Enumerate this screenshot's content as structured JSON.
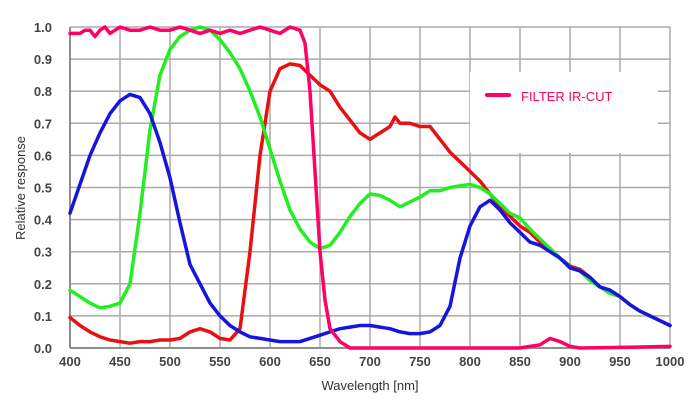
{
  "chart_data": {
    "type": "line",
    "title": "",
    "xlabel": "Wavelength [nm]",
    "ylabel": "Relative response",
    "xlim": [
      400,
      1000
    ],
    "ylim": [
      0,
      1.0
    ],
    "grid": true,
    "x_ticks": [
      "400",
      "450",
      "500",
      "550",
      "600",
      "650",
      "700",
      "750",
      "800",
      "850",
      "900",
      "950",
      "1000"
    ],
    "y_ticks": [
      "0.0",
      "0.1",
      "0.2",
      "0.3",
      "0.4",
      "0.5",
      "0.6",
      "0.7",
      "0.8",
      "0.9",
      "1.0"
    ],
    "legend": {
      "placement": "top-right",
      "entries": [
        {
          "label": "FILTER IR-CUT",
          "color": "#ff0066"
        }
      ]
    },
    "series": [
      {
        "name": "red",
        "color": "#e81010",
        "x": [
          400,
          410,
          420,
          430,
          440,
          450,
          460,
          470,
          480,
          490,
          500,
          510,
          520,
          530,
          540,
          550,
          560,
          570,
          580,
          590,
          600,
          610,
          620,
          630,
          640,
          650,
          660,
          670,
          680,
          690,
          700,
          710,
          720,
          725,
          730,
          740,
          750,
          760,
          770,
          780,
          790,
          800,
          810,
          820,
          830,
          840,
          850,
          860,
          870,
          880,
          890,
          900,
          910,
          920,
          930,
          940,
          950,
          960,
          970,
          980,
          990,
          1000
        ],
        "y": [
          0.095,
          0.07,
          0.05,
          0.035,
          0.025,
          0.02,
          0.015,
          0.02,
          0.02,
          0.025,
          0.025,
          0.03,
          0.05,
          0.06,
          0.05,
          0.03,
          0.025,
          0.06,
          0.3,
          0.6,
          0.8,
          0.87,
          0.885,
          0.88,
          0.85,
          0.82,
          0.8,
          0.75,
          0.71,
          0.67,
          0.65,
          0.67,
          0.69,
          0.72,
          0.7,
          0.7,
          0.69,
          0.69,
          0.65,
          0.61,
          0.58,
          0.55,
          0.52,
          0.48,
          0.44,
          0.41,
          0.38,
          0.36,
          0.33,
          0.31,
          0.28,
          0.255,
          0.245,
          0.22,
          0.19,
          0.18,
          0.16,
          0.135,
          0.115,
          0.1,
          0.085,
          0.07
        ]
      },
      {
        "name": "green",
        "color": "#22ee22",
        "x": [
          400,
          410,
          420,
          430,
          440,
          450,
          460,
          470,
          480,
          490,
          500,
          510,
          520,
          530,
          540,
          550,
          560,
          570,
          580,
          590,
          600,
          610,
          620,
          630,
          640,
          650,
          660,
          670,
          680,
          690,
          700,
          710,
          720,
          730,
          740,
          750,
          760,
          770,
          780,
          790,
          800,
          810,
          820,
          830,
          840,
          850,
          860,
          870,
          880,
          890,
          900,
          910,
          920,
          930,
          940,
          950,
          960,
          970,
          980,
          990,
          1000
        ],
        "y": [
          0.18,
          0.16,
          0.14,
          0.125,
          0.13,
          0.14,
          0.2,
          0.42,
          0.68,
          0.85,
          0.93,
          0.97,
          0.99,
          1.0,
          0.99,
          0.96,
          0.92,
          0.87,
          0.8,
          0.72,
          0.62,
          0.52,
          0.43,
          0.37,
          0.33,
          0.31,
          0.32,
          0.36,
          0.41,
          0.45,
          0.48,
          0.475,
          0.46,
          0.44,
          0.455,
          0.47,
          0.49,
          0.49,
          0.5,
          0.505,
          0.51,
          0.5,
          0.48,
          0.45,
          0.42,
          0.405,
          0.37,
          0.34,
          0.31,
          0.28,
          0.25,
          0.24,
          0.21,
          0.19,
          0.17,
          0.16,
          0.135,
          0.115,
          0.1,
          0.085,
          0.07
        ]
      },
      {
        "name": "blue",
        "color": "#1515dd",
        "x": [
          400,
          410,
          420,
          430,
          440,
          450,
          460,
          470,
          480,
          490,
          500,
          510,
          520,
          530,
          540,
          550,
          560,
          570,
          580,
          590,
          600,
          610,
          620,
          630,
          640,
          650,
          660,
          670,
          680,
          690,
          700,
          710,
          720,
          730,
          740,
          750,
          760,
          770,
          780,
          790,
          800,
          810,
          820,
          830,
          840,
          850,
          860,
          870,
          880,
          890,
          900,
          910,
          920,
          930,
          940,
          950,
          960,
          970,
          980,
          990,
          1000
        ],
        "y": [
          0.42,
          0.51,
          0.6,
          0.67,
          0.73,
          0.77,
          0.79,
          0.78,
          0.73,
          0.64,
          0.53,
          0.39,
          0.26,
          0.2,
          0.14,
          0.1,
          0.07,
          0.05,
          0.035,
          0.03,
          0.025,
          0.02,
          0.02,
          0.02,
          0.03,
          0.04,
          0.05,
          0.06,
          0.065,
          0.07,
          0.07,
          0.065,
          0.06,
          0.05,
          0.045,
          0.045,
          0.05,
          0.07,
          0.13,
          0.28,
          0.38,
          0.44,
          0.46,
          0.43,
          0.39,
          0.36,
          0.33,
          0.32,
          0.3,
          0.28,
          0.25,
          0.24,
          0.22,
          0.19,
          0.18,
          0.16,
          0.135,
          0.115,
          0.1,
          0.085,
          0.07
        ]
      },
      {
        "name": "FILTER IR-CUT",
        "color": "#ff0066",
        "x": [
          400,
          410,
          415,
          420,
          425,
          430,
          435,
          440,
          445,
          450,
          460,
          470,
          480,
          490,
          500,
          510,
          520,
          530,
          540,
          550,
          560,
          570,
          580,
          590,
          600,
          610,
          620,
          630,
          635,
          640,
          645,
          650,
          655,
          660,
          670,
          680,
          700,
          750,
          800,
          850,
          860,
          870,
          880,
          890,
          900,
          910,
          950,
          1000
        ],
        "y": [
          0.98,
          0.98,
          0.99,
          0.99,
          0.97,
          0.99,
          1.0,
          0.98,
          0.99,
          1.0,
          0.99,
          0.99,
          1.0,
          0.99,
          0.99,
          1.0,
          0.99,
          0.98,
          0.99,
          0.98,
          0.99,
          0.98,
          0.99,
          1.0,
          0.99,
          0.98,
          1.0,
          0.99,
          0.95,
          0.8,
          0.55,
          0.3,
          0.15,
          0.06,
          0.02,
          0.0,
          0.0,
          0.0,
          0.0,
          0.0,
          0.005,
          0.01,
          0.03,
          0.02,
          0.005,
          0.0,
          0.002,
          0.005
        ]
      }
    ]
  }
}
